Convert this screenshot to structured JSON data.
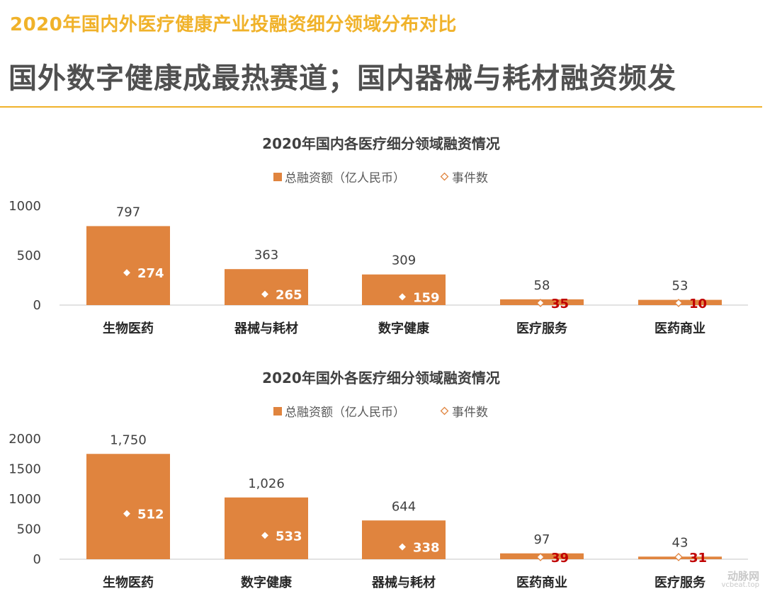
{
  "header": {
    "kicker": "2020年国内外医疗健康产业投融资细分领域分布对比",
    "headline": "国外数字健康成最热赛道；国内器械与耗材融资频发"
  },
  "watermark": {
    "logo": "动脉网",
    "url": "vcbeat.top"
  },
  "colors": {
    "bar": "#e0843e",
    "count_on_bar": "#ffffff",
    "count_on_line": "#c00000",
    "accent": "#f0b22a",
    "axis": "#d9d9d9"
  },
  "chart_data": [
    {
      "type": "bar",
      "title": "2020年国内各医疗细分领域融资情况",
      "legend": {
        "bar": "总融资额（亿人民币）",
        "marker": "事件数"
      },
      "categories": [
        "生物医药",
        "器械与耗材",
        "数字健康",
        "医疗服务",
        "医药商业"
      ],
      "series": [
        {
          "name": "总融资额（亿人民币）",
          "values": [
            797,
            363,
            309,
            58,
            53
          ],
          "labels": [
            "797",
            "363",
            "309",
            "58",
            "53"
          ]
        },
        {
          "name": "事件数",
          "values": [
            274,
            265,
            159,
            35,
            10
          ]
        }
      ],
      "yticks": [
        "0",
        "500",
        "1000"
      ],
      "ylim": [
        0,
        1000
      ],
      "grid": false
    },
    {
      "type": "bar",
      "title": "2020年国外各医疗细分领域融资情况",
      "legend": {
        "bar": "总融资额（亿人民币）",
        "marker": "事件数"
      },
      "categories": [
        "生物医药",
        "数字健康",
        "器械与耗材",
        "医药商业",
        "医疗服务"
      ],
      "series": [
        {
          "name": "总融资额（亿人民币）",
          "values": [
            1750,
            1026,
            644,
            97,
            43
          ],
          "labels": [
            "1,750",
            "1,026",
            "644",
            "97",
            "43"
          ]
        },
        {
          "name": "事件数",
          "values": [
            512,
            533,
            338,
            39,
            31
          ]
        }
      ],
      "yticks": [
        "0",
        "500",
        "1000",
        "1500",
        "2000"
      ],
      "ylim": [
        0,
        2000
      ],
      "grid": false
    }
  ]
}
